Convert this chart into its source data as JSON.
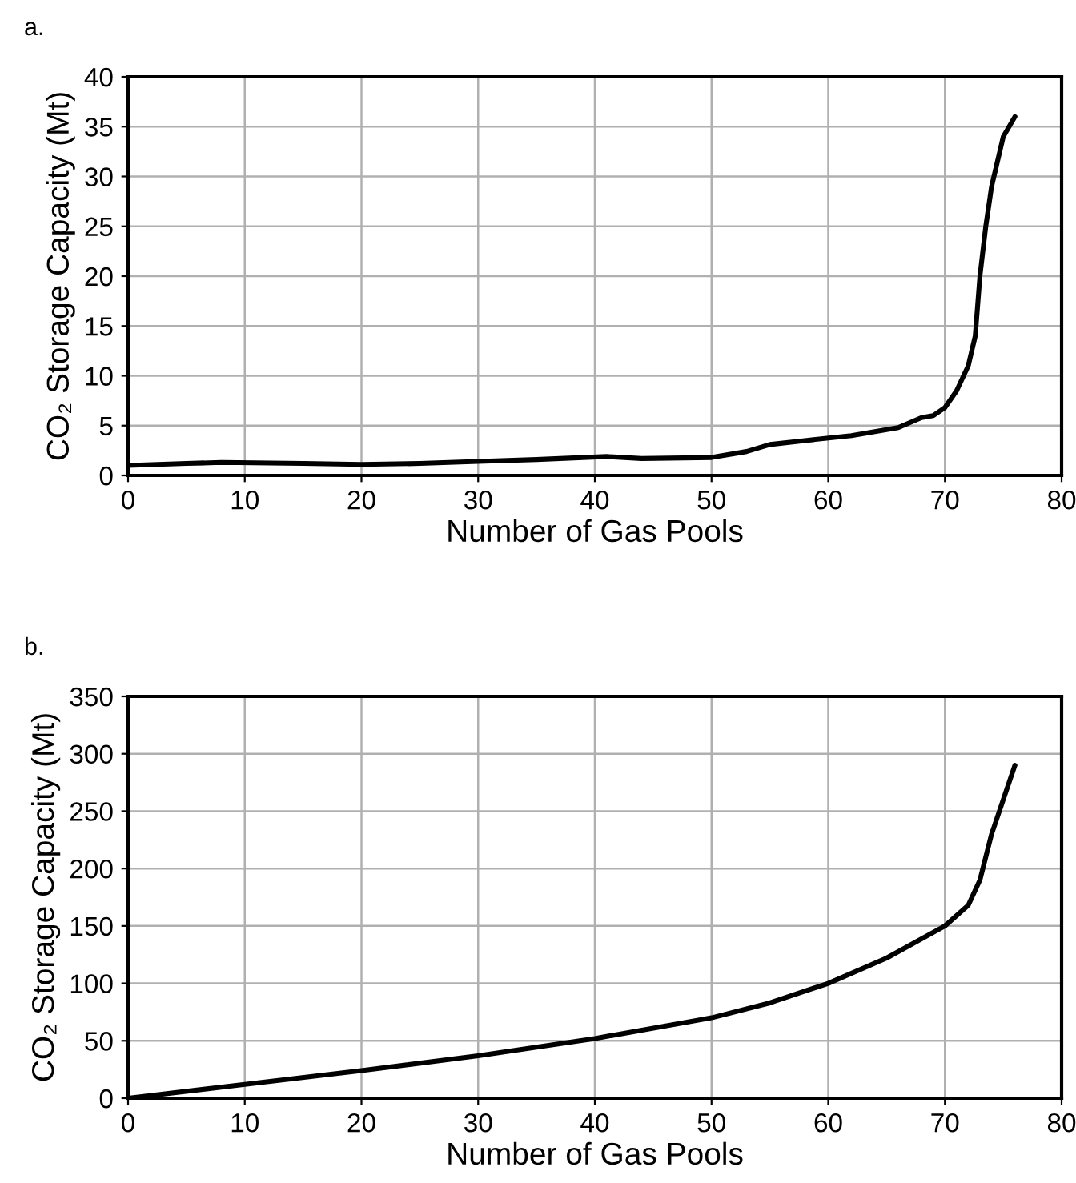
{
  "chart_data": [
    {
      "type": "line",
      "title": "a.",
      "xlabel": "Number of Gas Pools",
      "ylabel": "CO₂ Storage Capacity (Mt)",
      "series": [
        {
          "color": "#000000",
          "x": [
            0,
            5,
            8,
            15,
            20,
            25,
            30,
            35,
            39,
            41,
            44,
            50,
            53,
            55,
            58,
            62,
            66,
            68,
            69,
            70,
            71,
            72,
            72.6,
            73,
            73.5,
            74,
            75,
            76
          ],
          "values": [
            1.0,
            1.2,
            1.3,
            1.2,
            1.1,
            1.2,
            1.4,
            1.6,
            1.8,
            1.9,
            1.7,
            1.8,
            2.4,
            3.1,
            3.5,
            4.0,
            4.8,
            5.8,
            6.0,
            6.8,
            8.5,
            11,
            14,
            20,
            25,
            29,
            34,
            36
          ]
        }
      ],
      "xlim": [
        0,
        80
      ],
      "xticks": [
        0,
        10,
        20,
        30,
        40,
        50,
        60,
        70,
        80
      ],
      "ylim": [
        0,
        40
      ],
      "yticks": [
        0,
        5,
        10,
        15,
        20,
        25,
        30,
        35,
        40
      ],
      "grid": true,
      "marker": "none",
      "line_style": "solid"
    },
    {
      "type": "line",
      "title": "b.",
      "xlabel": "Number of Gas Pools",
      "ylabel": "CO₂ Storage Capacity (Mt)",
      "series": [
        {
          "color": "#000000",
          "x": [
            0,
            10,
            20,
            30,
            40,
            50,
            55,
            60,
            65,
            70,
            72,
            73,
            74,
            75,
            76
          ],
          "values": [
            0,
            12,
            24,
            37,
            52,
            70,
            83,
            100,
            122,
            150,
            168,
            190,
            230,
            260,
            290
          ]
        }
      ],
      "xlim": [
        0,
        80
      ],
      "xticks": [
        0,
        10,
        20,
        30,
        40,
        50,
        60,
        70,
        80
      ],
      "ylim": [
        0,
        350
      ],
      "yticks": [
        0,
        50,
        100,
        150,
        200,
        250,
        300,
        350
      ],
      "grid": true,
      "marker": "none",
      "line_style": "solid"
    }
  ]
}
